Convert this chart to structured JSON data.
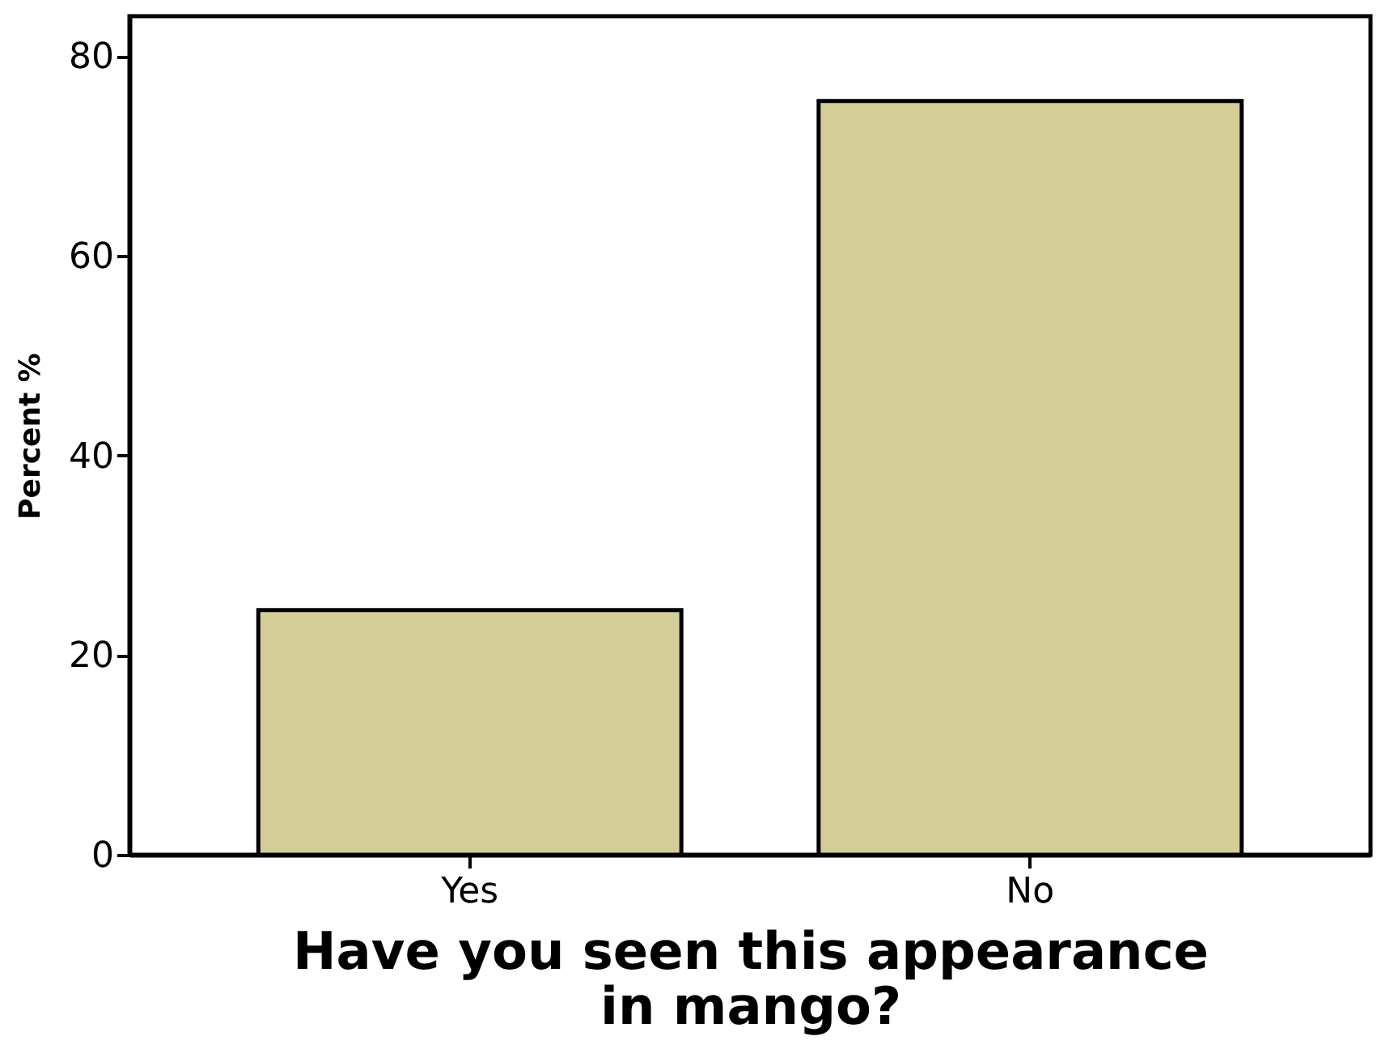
{
  "chart_data": {
    "type": "bar",
    "xlabel": "Have you seen this appearance in mango?",
    "ylabel": "Percent %",
    "categories": [
      "Yes",
      "No"
    ],
    "values": [
      24.5,
      75.5
    ],
    "color": "#d3cd97",
    "ylim": [
      0,
      84
    ],
    "yticks": [
      0,
      20,
      40,
      60,
      80
    ],
    "grid": false
  }
}
